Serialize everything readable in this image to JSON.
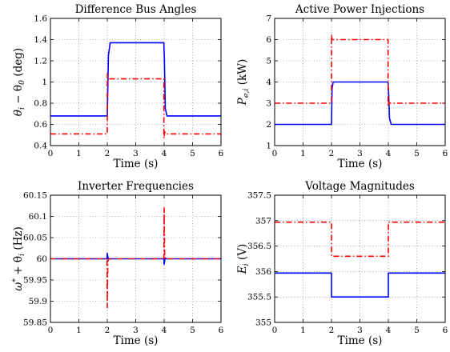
{
  "chart_data": [
    {
      "type": "line",
      "title": "Difference Bus Angles",
      "xlabel": "Time (s)",
      "ylabel": [
        "θ",
        "i",
        " − θ",
        "0",
        " (deg)"
      ],
      "xlim": [
        0,
        6
      ],
      "ylim": [
        0.4,
        1.6
      ],
      "xticks": [
        "0",
        "1",
        "2",
        "3",
        "4",
        "5",
        "6"
      ],
      "yticks": [
        "0.4",
        "0.6",
        "0.8",
        "1",
        "1.2",
        "1.4",
        "1.6"
      ],
      "grid": true,
      "series": [
        {
          "style": "solid",
          "color": "#0000ff",
          "x": [
            0,
            2,
            2.04,
            2.1,
            3.99,
            4.01,
            4.04,
            4.1,
            6
          ],
          "y": [
            0.68,
            0.68,
            1.25,
            1.37,
            1.37,
            1.2,
            0.75,
            0.68,
            0.68
          ]
        },
        {
          "style": "dash-dot",
          "color": "#ff0000",
          "x": [
            0,
            2,
            2,
            2.02,
            2.05,
            3.99,
            3.99,
            4.02,
            4.05,
            6
          ],
          "y": [
            0.51,
            0.51,
            1.08,
            1.01,
            1.03,
            1.03,
            0.47,
            0.53,
            0.51,
            0.51
          ]
        }
      ]
    },
    {
      "type": "line",
      "title": "Active Power Injections",
      "xlabel": "Time (s)",
      "ylabel": [
        "P",
        "e,i",
        " (kW)"
      ],
      "xlim": [
        0,
        6
      ],
      "ylim": [
        1,
        7
      ],
      "xticks": [
        "0",
        "1",
        "2",
        "3",
        "4",
        "5",
        "6"
      ],
      "yticks": [
        "1",
        "2",
        "3",
        "4",
        "5",
        "6",
        "7"
      ],
      "grid": true,
      "series": [
        {
          "style": "solid",
          "color": "#0000ff",
          "x": [
            0,
            2,
            2.02,
            2.06,
            3.99,
            4.01,
            4.04,
            4.1,
            6
          ],
          "y": [
            2,
            2,
            3.7,
            4,
            4,
            3.5,
            2.3,
            2,
            2
          ]
        },
        {
          "style": "dash-dot",
          "color": "#ff0000",
          "x": [
            0,
            2,
            2,
            2.02,
            2.05,
            3.99,
            3.99,
            4.02,
            4.05,
            6
          ],
          "y": [
            3,
            3,
            6.25,
            6.0,
            6.0,
            6.0,
            2.85,
            3.05,
            3,
            3
          ]
        }
      ]
    },
    {
      "type": "line",
      "title": "Inverter Frequencies",
      "xlabel": "Time (s)",
      "ylabel": [
        "ω",
        "*",
        " + θ̇",
        "i",
        " (Hz)"
      ],
      "xlim": [
        0,
        6
      ],
      "ylim": [
        59.85,
        60.15
      ],
      "xticks": [
        "0",
        "1",
        "2",
        "3",
        "4",
        "5",
        "6"
      ],
      "yticks": [
        "59.85",
        "59.9",
        "59.95",
        "60",
        "60.05",
        "60.1",
        "60.15"
      ],
      "grid": true,
      "series": [
        {
          "style": "solid",
          "color": "#0000ff",
          "x": [
            0,
            1.99,
            2.0,
            2.01,
            2.04,
            2.08,
            3.99,
            4.0,
            4.01,
            4.04,
            4.08,
            6
          ],
          "y": [
            60,
            60,
            60.013,
            60.008,
            59.998,
            60,
            60,
            59.987,
            59.992,
            60.002,
            60,
            60
          ]
        },
        {
          "style": "dash-dot",
          "color": "#ff0000",
          "x": [
            0,
            1.99,
            2.0,
            2.005,
            2.02,
            2.05,
            3.99,
            4.0,
            4.005,
            4.02,
            4.05,
            6
          ],
          "y": [
            60,
            60,
            59.885,
            59.93,
            59.995,
            60,
            60,
            60.12,
            60.07,
            60.005,
            60,
            60
          ]
        }
      ]
    },
    {
      "type": "line",
      "title": "Voltage Magnitudes",
      "xlabel": "Time (s)",
      "ylabel": [
        "E",
        "i",
        "  (V)"
      ],
      "xlim": [
        0,
        6
      ],
      "ylim": [
        355,
        357.5
      ],
      "xticks": [
        "0",
        "1",
        "2",
        "3",
        "4",
        "5",
        "6"
      ],
      "yticks": [
        "355",
        "355.5",
        "356",
        "356.5",
        "357",
        "357.5"
      ],
      "grid": true,
      "series": [
        {
          "style": "solid",
          "color": "#0000ff",
          "x": [
            0,
            2,
            2,
            4,
            4,
            6
          ],
          "y": [
            355.97,
            355.97,
            355.5,
            355.5,
            355.97,
            355.97
          ]
        },
        {
          "style": "dash-dot",
          "color": "#ff0000",
          "x": [
            0,
            2,
            2,
            4,
            4,
            6
          ],
          "y": [
            356.97,
            356.97,
            356.3,
            356.3,
            356.97,
            356.97
          ]
        }
      ]
    }
  ]
}
